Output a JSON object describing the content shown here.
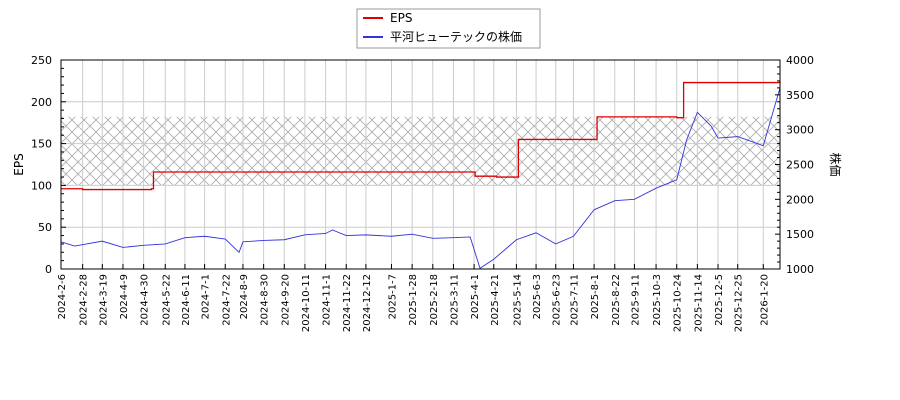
{
  "chart_data": {
    "type": "line",
    "title": "",
    "legend": {
      "position": "top-center",
      "entries": [
        {
          "label": "EPS",
          "color": "#dd0000"
        },
        {
          "label": "平河ヒューテックの株価",
          "color": "#3333dd"
        }
      ]
    },
    "xlabel": "",
    "ylabel_left": "EPS",
    "ylabel_right": "株価",
    "ylim_left": [
      0,
      250
    ],
    "ylim_right": [
      1000,
      4000
    ],
    "yticks_left": [
      0,
      50,
      100,
      150,
      200,
      250
    ],
    "yticks_right": [
      1000,
      1500,
      2000,
      2500,
      3000,
      3500,
      4000
    ],
    "grid": true,
    "shaded_band": {
      "axis": "left",
      "from": 100,
      "to": 182,
      "pattern": "crosshatch",
      "color": "#aaaaaa"
    },
    "x_tick_labels": [
      "2024-2-6",
      "2024-2-28",
      "2024-3-19",
      "2024-4-9",
      "2024-4-30",
      "2024-5-22",
      "2024-6-11",
      "2024-7-1",
      "2024-7-22",
      "2024-8-9",
      "2024-8-30",
      "2024-9-20",
      "2024-10-11",
      "2024-11-1",
      "2024-11-22",
      "2024-12-12",
      "2025-1-7",
      "2025-1-28",
      "2025-2-18",
      "2025-3-11",
      "2025-4-1",
      "2025-4-21",
      "2025-5-14",
      "2025-6-3",
      "2025-6-23",
      "2025-7-11",
      "2025-8-1",
      "2025-8-22",
      "2025-9-11",
      "2025-10-3",
      "2025-10-24",
      "2025-11-14",
      "2025-12-5",
      "2025-12-25",
      "2026-1-20"
    ],
    "series": [
      {
        "name": "EPS",
        "axis": "left",
        "color": "#dd0000",
        "step": true,
        "points": [
          {
            "x": "2024-2-6",
            "y": 96
          },
          {
            "x": "2024-2-28",
            "y": 95
          },
          {
            "x": "2024-5-8",
            "y": 96
          },
          {
            "x": "2024-5-10",
            "y": 116
          },
          {
            "x": "2025-3-31",
            "y": 116
          },
          {
            "x": "2025-4-2",
            "y": 111
          },
          {
            "x": "2025-4-24",
            "y": 110
          },
          {
            "x": "2025-5-16",
            "y": 155
          },
          {
            "x": "2025-8-2",
            "y": 155
          },
          {
            "x": "2025-8-4",
            "y": 182
          },
          {
            "x": "2025-10-24",
            "y": 181
          },
          {
            "x": "2025-10-31",
            "y": 223
          },
          {
            "x": "2026-2-6",
            "y": 224
          }
        ]
      },
      {
        "name": "平河ヒューテックの株価",
        "axis": "right",
        "color": "#3333dd",
        "points": [
          {
            "x": "2024-2-6",
            "y": 1390
          },
          {
            "x": "2024-2-20",
            "y": 1330
          },
          {
            "x": "2024-3-19",
            "y": 1400
          },
          {
            "x": "2024-4-9",
            "y": 1310
          },
          {
            "x": "2024-4-30",
            "y": 1340
          },
          {
            "x": "2024-5-22",
            "y": 1360
          },
          {
            "x": "2024-6-11",
            "y": 1450
          },
          {
            "x": "2024-7-1",
            "y": 1470
          },
          {
            "x": "2024-7-22",
            "y": 1430
          },
          {
            "x": "2024-8-5",
            "y": 1240
          },
          {
            "x": "2024-8-9",
            "y": 1390
          },
          {
            "x": "2024-8-30",
            "y": 1410
          },
          {
            "x": "2024-9-20",
            "y": 1420
          },
          {
            "x": "2024-10-11",
            "y": 1490
          },
          {
            "x": "2024-11-1",
            "y": 1510
          },
          {
            "x": "2024-11-8",
            "y": 1560
          },
          {
            "x": "2024-11-22",
            "y": 1480
          },
          {
            "x": "2024-12-12",
            "y": 1490
          },
          {
            "x": "2025-1-7",
            "y": 1470
          },
          {
            "x": "2025-1-28",
            "y": 1500
          },
          {
            "x": "2025-2-18",
            "y": 1440
          },
          {
            "x": "2025-3-11",
            "y": 1450
          },
          {
            "x": "2025-3-28",
            "y": 1460
          },
          {
            "x": "2025-4-7",
            "y": 1010
          },
          {
            "x": "2025-4-21",
            "y": 1140
          },
          {
            "x": "2025-5-14",
            "y": 1420
          },
          {
            "x": "2025-6-3",
            "y": 1520
          },
          {
            "x": "2025-6-23",
            "y": 1360
          },
          {
            "x": "2025-7-11",
            "y": 1470
          },
          {
            "x": "2025-8-1",
            "y": 1850
          },
          {
            "x": "2025-8-22",
            "y": 1980
          },
          {
            "x": "2025-9-11",
            "y": 2000
          },
          {
            "x": "2025-10-3",
            "y": 2160
          },
          {
            "x": "2025-10-24",
            "y": 2280
          },
          {
            "x": "2025-11-3",
            "y": 2850
          },
          {
            "x": "2025-11-14",
            "y": 3250
          },
          {
            "x": "2025-11-28",
            "y": 3050
          },
          {
            "x": "2025-12-5",
            "y": 2880
          },
          {
            "x": "2025-12-25",
            "y": 2900
          },
          {
            "x": "2026-1-20",
            "y": 2770
          },
          {
            "x": "2026-2-6",
            "y": 3600
          }
        ]
      }
    ]
  }
}
